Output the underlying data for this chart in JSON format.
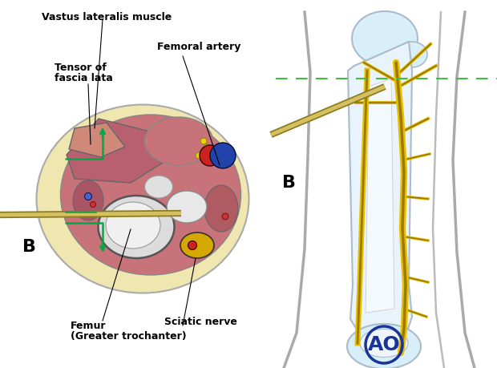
{
  "title": "",
  "labels": {
    "vastus_lateralis": "Vastus lateralis muscle",
    "tensor_fascia": "Tensor of\nfascia lata",
    "femoral_artery": "Femoral artery",
    "femur": "Femur\n(Greater trochanter)",
    "sciatic_nerve": "Sciatic nerve",
    "B_left": "B",
    "B_right": "B"
  },
  "colors": {
    "bg_color": "#ffffff",
    "muscle_main": "#c8737a",
    "muscle_dark": "#b05a62",
    "fat_bg": "#f0e6b0",
    "bone_gray": "#d0d0d0",
    "bone_white": "#e8e8e8",
    "outline": "#333333",
    "fascia": "#c8c8a0",
    "femoral_artery_red": "#cc2222",
    "femoral_vein_blue": "#2244aa",
    "sciatic_yellow": "#d4a800",
    "nerve_yellow": "#e8c000",
    "pin_color": "#8b7a20",
    "pin_highlight": "#d4c060",
    "safe_zone_green": "#00aa44",
    "ao_blue": "#1a3399",
    "dashed_green": "#44bb44",
    "skin_outline": "#999999",
    "bone_blue": "#d8eef8",
    "bone_edge": "#aabbcc"
  }
}
